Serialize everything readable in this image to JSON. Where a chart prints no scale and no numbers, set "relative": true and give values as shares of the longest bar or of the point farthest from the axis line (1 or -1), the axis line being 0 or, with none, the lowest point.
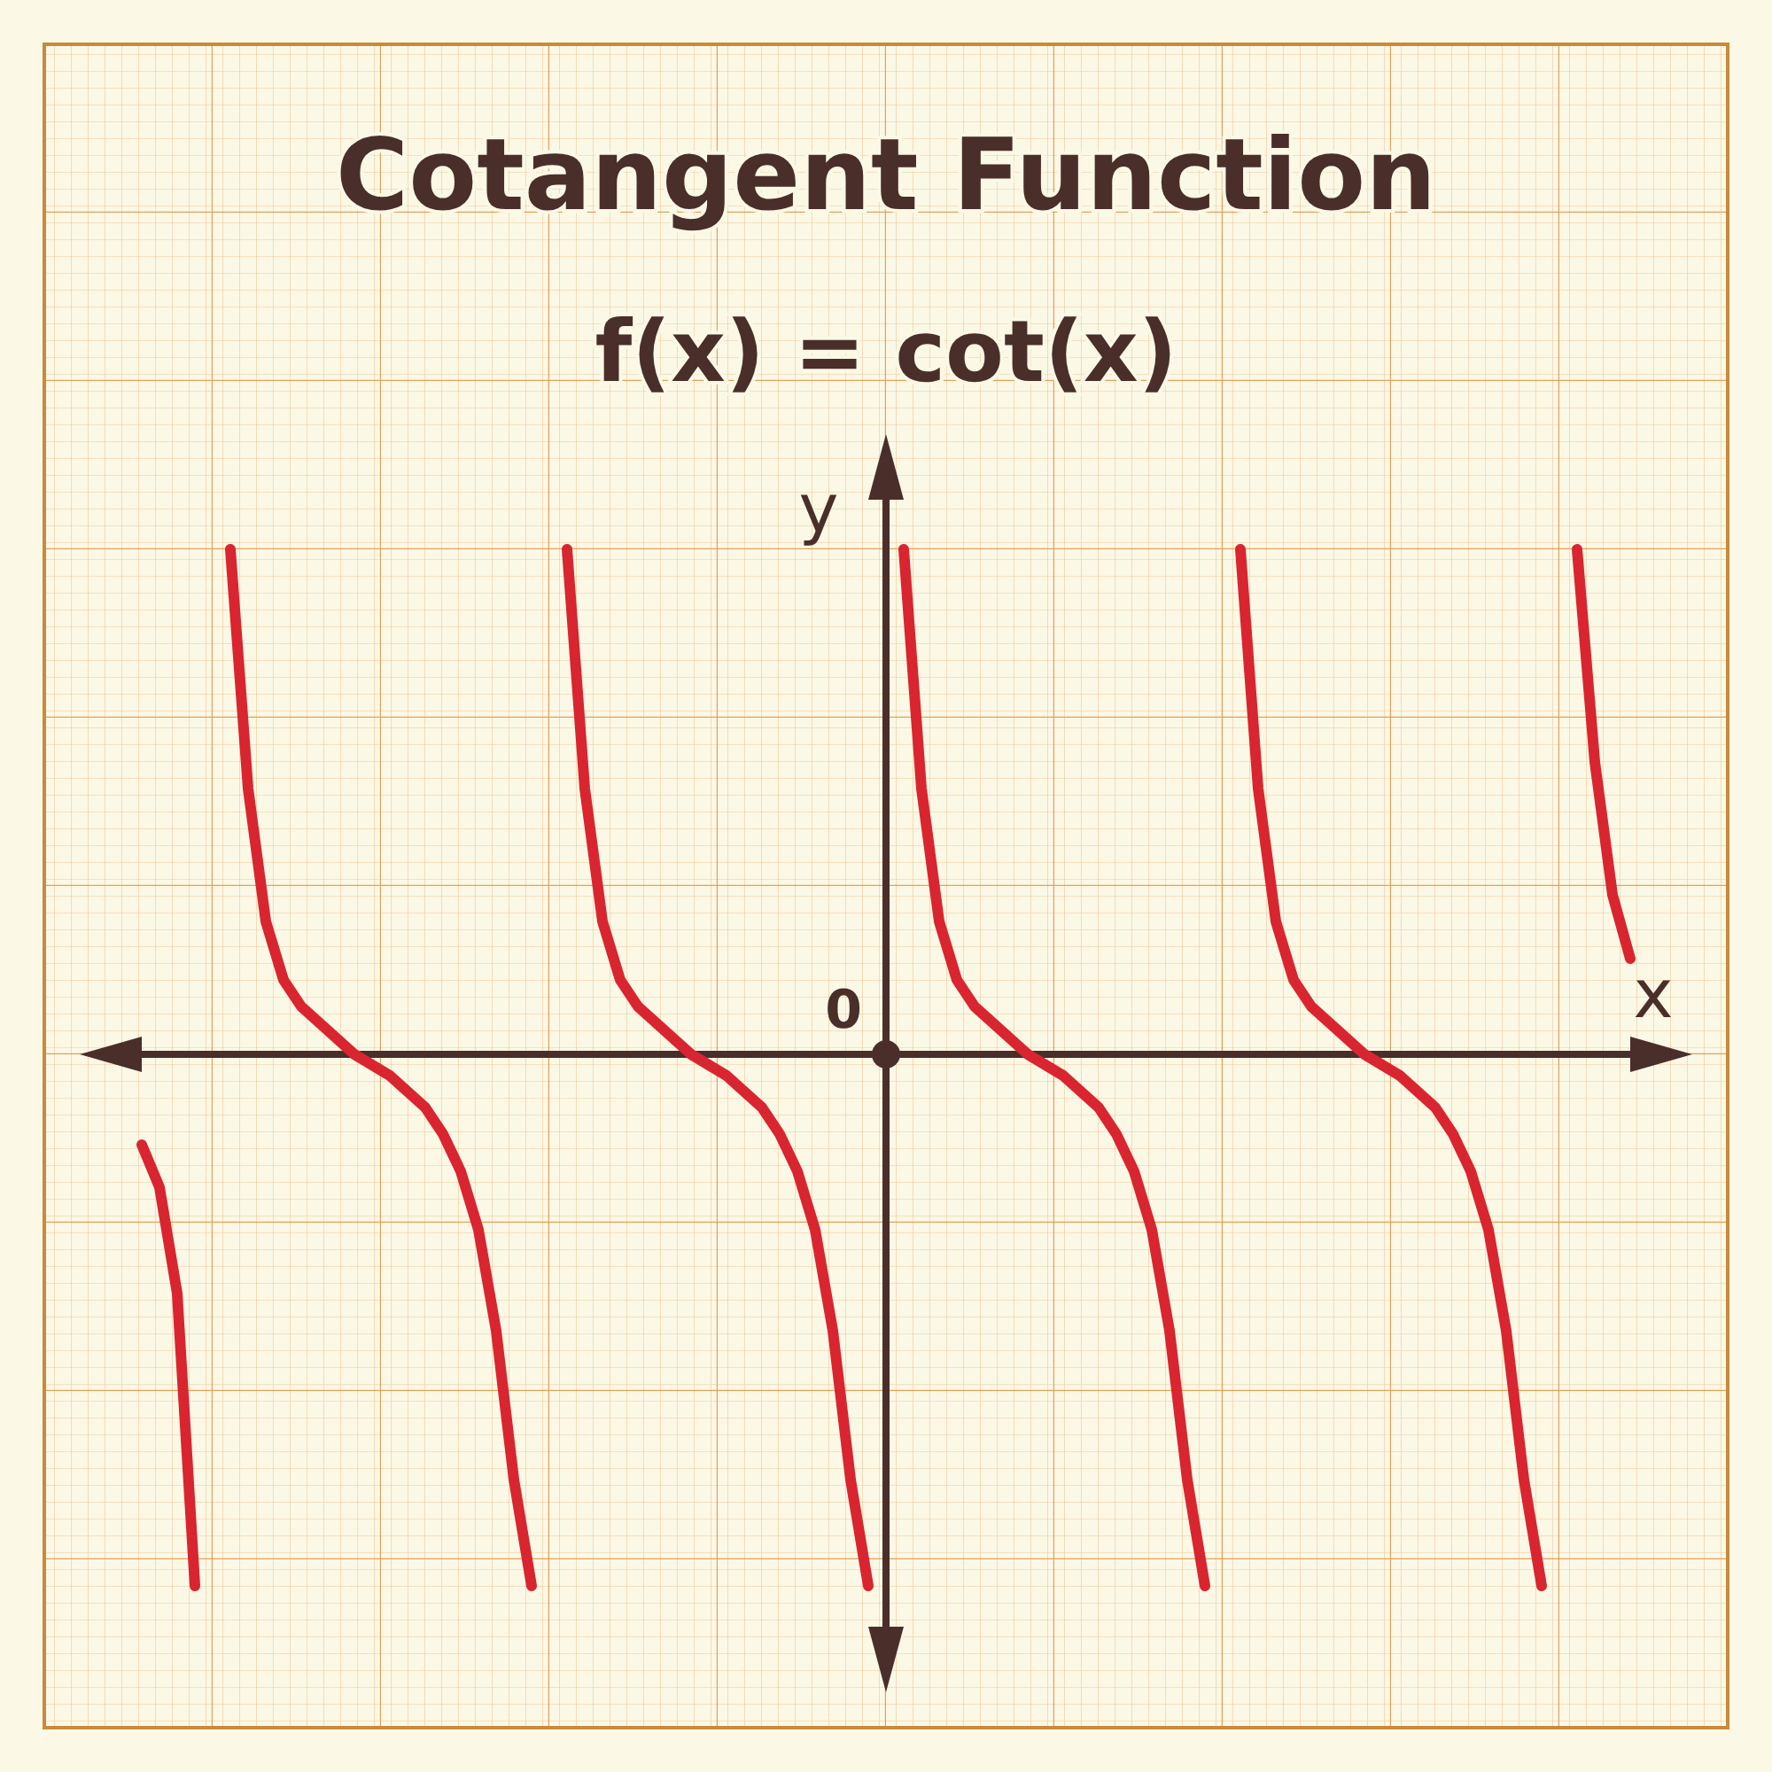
{
  "chart_data": {
    "type": "line",
    "title": "Cotangent Function",
    "subtitle": "f(x) = cot(x)",
    "xlabel": "x",
    "ylabel": "y",
    "annotations": [
      "0"
    ],
    "relative": true,
    "line_style": "solid",
    "categories": [
      null,
      null,
      null,
      null,
      null,
      null,
      null,
      null,
      null,
      null,
      null,
      null,
      null,
      null,
      null,
      null,
      null,
      null,
      null,
      null,
      null,
      null,
      null,
      null,
      null,
      null,
      null,
      null,
      null,
      null,
      null,
      null,
      null,
      null,
      null,
      null,
      null,
      null,
      null,
      null,
      null,
      null,
      null,
      null,
      null,
      null,
      null,
      null,
      null,
      null,
      null,
      null,
      null,
      null,
      null,
      null,
      null,
      null,
      null,
      null,
      null,
      null,
      null,
      null,
      null,
      null,
      null,
      null,
      null,
      null,
      null,
      null,
      null,
      null,
      null,
      null,
      null,
      null,
      null,
      null,
      null,
      null,
      null,
      null,
      null
    ],
    "series": [
      {
        "color": "#d9252f",
        "values": [
          -0.17,
          -0.25,
          -0.45,
          -1.0,
          null,
          null,
          null,
          null,
          null,
          null,
          null,
          null,
          null,
          null,
          null,
          null,
          null,
          null,
          null,
          null,
          null,
          null,
          null,
          null,
          null,
          null,
          null,
          null,
          null,
          null,
          null,
          null,
          null,
          null,
          null,
          null,
          null,
          null,
          null,
          null,
          null,
          null,
          null,
          null,
          null,
          null,
          null,
          null,
          null,
          null,
          null,
          null,
          null,
          null,
          null,
          null,
          null,
          null,
          null,
          null,
          null,
          null,
          null,
          null,
          null,
          null,
          null,
          null,
          null,
          null,
          null,
          null,
          null,
          null,
          null,
          null,
          null,
          null,
          null,
          null,
          null,
          null,
          null,
          null,
          null
        ]
      },
      {
        "color": "#d9252f",
        "values": [
          null,
          null,
          null,
          null,
          null,
          0.95,
          0.5,
          0.25,
          0.14,
          0.09,
          0.06,
          0.03,
          0.0,
          -0.02,
          -0.04,
          -0.07,
          -0.1,
          -0.15,
          -0.22,
          -0.33,
          -0.52,
          -0.8,
          -1.0,
          null,
          null,
          null,
          null,
          null,
          null,
          null,
          null,
          null,
          null,
          null,
          null,
          null,
          null,
          null,
          null,
          null,
          null,
          null,
          null,
          null,
          null,
          null,
          null,
          null,
          null,
          null,
          null,
          null,
          null,
          null,
          null,
          null,
          null,
          null,
          null,
          null,
          null,
          null,
          null,
          null,
          null,
          null,
          null,
          null,
          null,
          null,
          null,
          null,
          null,
          null,
          null,
          null,
          null,
          null,
          null,
          null,
          null,
          null,
          null,
          null,
          null
        ]
      },
      {
        "color": "#d9252f",
        "values": [
          null,
          null,
          null,
          null,
          null,
          null,
          null,
          null,
          null,
          null,
          null,
          null,
          null,
          null,
          null,
          null,
          null,
          null,
          null,
          null,
          null,
          null,
          null,
          null,
          0.95,
          0.5,
          0.25,
          0.14,
          0.09,
          0.06,
          0.03,
          0.0,
          -0.02,
          -0.04,
          -0.07,
          -0.1,
          -0.15,
          -0.22,
          -0.33,
          -0.52,
          -0.8,
          -1.0,
          null,
          null,
          null,
          null,
          null,
          null,
          null,
          null,
          null,
          null,
          null,
          null,
          null,
          null,
          null,
          null,
          null,
          null,
          null,
          null,
          null,
          null,
          null,
          null,
          null,
          null,
          null,
          null,
          null,
          null,
          null,
          null,
          null,
          null,
          null,
          null,
          null,
          null,
          null,
          null,
          null,
          null,
          null
        ]
      },
      {
        "color": "#d9252f",
        "values": [
          null,
          null,
          null,
          null,
          null,
          null,
          null,
          null,
          null,
          null,
          null,
          null,
          null,
          null,
          null,
          null,
          null,
          null,
          null,
          null,
          null,
          null,
          null,
          null,
          null,
          null,
          null,
          null,
          null,
          null,
          null,
          null,
          null,
          null,
          null,
          null,
          null,
          null,
          null,
          null,
          null,
          null,
          null,
          0.95,
          0.5,
          0.25,
          0.14,
          0.09,
          0.06,
          0.03,
          0.0,
          -0.02,
          -0.04,
          -0.07,
          -0.1,
          -0.15,
          -0.22,
          -0.33,
          -0.52,
          -0.8,
          -1.0,
          null,
          null,
          null,
          null,
          null,
          null,
          null,
          null,
          null,
          null,
          null,
          null,
          null,
          null,
          null,
          null,
          null,
          null,
          null,
          null,
          null,
          null,
          null,
          null
        ]
      },
      {
        "color": "#d9252f",
        "values": [
          null,
          null,
          null,
          null,
          null,
          null,
          null,
          null,
          null,
          null,
          null,
          null,
          null,
          null,
          null,
          null,
          null,
          null,
          null,
          null,
          null,
          null,
          null,
          null,
          null,
          null,
          null,
          null,
          null,
          null,
          null,
          null,
          null,
          null,
          null,
          null,
          null,
          null,
          null,
          null,
          null,
          null,
          null,
          null,
          null,
          null,
          null,
          null,
          null,
          null,
          null,
          null,
          null,
          null,
          null,
          null,
          null,
          null,
          null,
          null,
          null,
          null,
          0.95,
          0.5,
          0.25,
          0.14,
          0.09,
          0.06,
          0.03,
          0.0,
          -0.02,
          -0.04,
          -0.07,
          -0.1,
          -0.15,
          -0.22,
          -0.33,
          -0.52,
          -0.8,
          -1.0,
          null,
          null,
          null,
          null,
          null
        ]
      },
      {
        "color": "#d9252f",
        "values": [
          null,
          null,
          null,
          null,
          null,
          null,
          null,
          null,
          null,
          null,
          null,
          null,
          null,
          null,
          null,
          null,
          null,
          null,
          null,
          null,
          null,
          null,
          null,
          null,
          null,
          null,
          null,
          null,
          null,
          null,
          null,
          null,
          null,
          null,
          null,
          null,
          null,
          null,
          null,
          null,
          null,
          null,
          null,
          null,
          null,
          null,
          null,
          null,
          null,
          null,
          null,
          null,
          null,
          null,
          null,
          null,
          null,
          null,
          null,
          null,
          null,
          null,
          null,
          null,
          null,
          null,
          null,
          null,
          null,
          null,
          null,
          null,
          null,
          null,
          null,
          null,
          null,
          null,
          null,
          null,
          null,
          0.95,
          0.55,
          0.3,
          0.18
        ]
      }
    ]
  }
}
